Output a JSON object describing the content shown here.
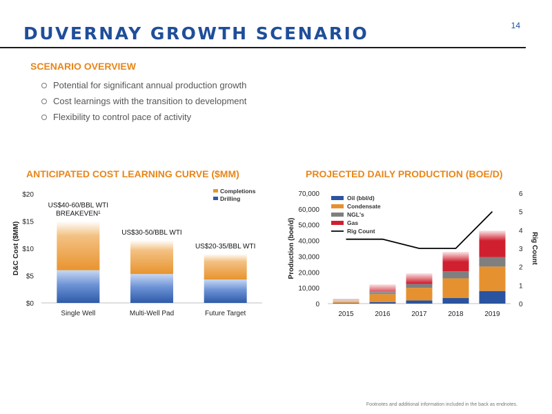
{
  "page_number": "14",
  "title": "DUVERNAY GROWTH SCENARIO",
  "overview": {
    "heading": "SCENARIO OVERVIEW",
    "bullets": [
      "Potential for significant annual production growth",
      "Cost learnings with the transition to development",
      "Flexibility to control pace of activity"
    ]
  },
  "colors": {
    "title": "#1f4e9a",
    "accent": "#e8861a",
    "drilling": "#2e5aa8",
    "completions": "#e8942e",
    "oil": "#2a54a0",
    "condensate": "#e6912f",
    "ngl": "#7f7f7f",
    "gas": "#d02030",
    "rig_line": "#000000"
  },
  "chart_data": [
    {
      "type": "bar",
      "stacked": true,
      "title": "ANTICIPATED COST LEARNING CURVE ($MM)",
      "xlabel": "",
      "ylabel": "D&C Cost ($MM)",
      "ylim": [
        0,
        20
      ],
      "yticks": [
        "$0",
        "$5",
        "$10",
        "$15",
        "$20"
      ],
      "categories": [
        "Single Well",
        "Multi-Well Pad",
        "Future Target"
      ],
      "series": [
        {
          "name": "Drilling",
          "values": [
            6,
            5.3,
            4.3
          ]
        },
        {
          "name": "Completions",
          "values": [
            9,
            6.2,
            4.7
          ]
        }
      ],
      "annotations": [
        {
          "lines": [
            "US$40-60/BBL WTI",
            "BREAKEVEN¹"
          ],
          "category": 0
        },
        {
          "lines": [
            "US$30-50/BBL WTI"
          ],
          "category": 1
        },
        {
          "lines": [
            "US$20-35/BBL WTI"
          ],
          "category": 2
        }
      ],
      "legend": "top-right",
      "grid": false
    },
    {
      "type": "bar",
      "stacked": true,
      "title": "PROJECTED DAILY PRODUCTION (BOE/D)",
      "xlabel": "",
      "ylabel": "Production (boe/d)",
      "ylim": [
        0,
        70000
      ],
      "yticks": [
        "0",
        "10,000",
        "20,000",
        "30,000",
        "40,000",
        "50,000",
        "60,000",
        "70,000"
      ],
      "y2label": "Rig Count",
      "y2lim": [
        0,
        6
      ],
      "y2ticks": [
        "0",
        "1",
        "2",
        "3",
        "4",
        "5",
        "6"
      ],
      "categories": [
        "2015",
        "2016",
        "2017",
        "2018",
        "2019"
      ],
      "series": [
        {
          "name": "Oil (bbl/d)",
          "values": [
            400,
            1000,
            2000,
            3500,
            8000
          ]
        },
        {
          "name": "Condensate",
          "values": [
            1500,
            5000,
            8000,
            12500,
            15500
          ]
        },
        {
          "name": "NGL's",
          "values": [
            300,
            1500,
            2500,
            4500,
            6000
          ]
        },
        {
          "name": "Gas",
          "values": [
            800,
            4500,
            6500,
            12000,
            16500
          ]
        }
      ],
      "line_series": {
        "name": "Rig Count",
        "axis": "y2",
        "values": [
          3.5,
          3.5,
          3,
          3,
          5
        ]
      },
      "legend": "top-left",
      "grid": false
    }
  ],
  "footnote": "Footnotes and additional information included in the back as endnotes."
}
